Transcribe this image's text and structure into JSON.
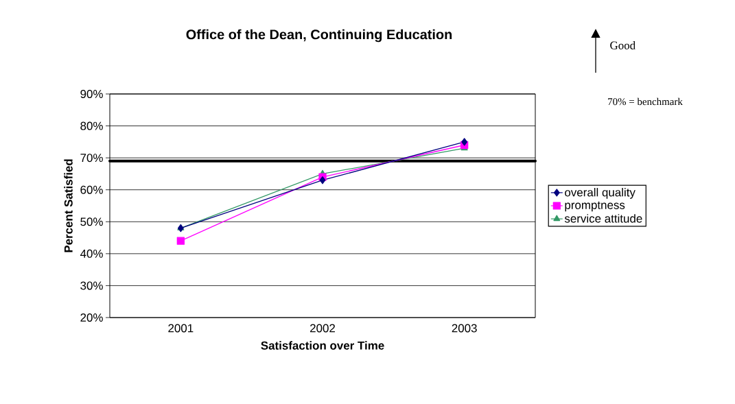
{
  "chart_data": {
    "type": "line",
    "title": "Office of the Dean, Continuing Education",
    "xlabel": "Satisfaction over Time",
    "ylabel": "Percent Satisfied",
    "categories": [
      "2001",
      "2002",
      "2003"
    ],
    "series": [
      {
        "name": "overall quality",
        "color": "#000080",
        "marker": "diamond",
        "values": [
          48,
          63,
          75
        ]
      },
      {
        "name": "promptness",
        "color": "#ff00ff",
        "marker": "square",
        "values": [
          44,
          64,
          74
        ]
      },
      {
        "name": "service attitude",
        "color": "#339966",
        "marker": "triangle",
        "values": [
          48,
          65,
          73
        ]
      }
    ],
    "ylim": [
      20,
      90
    ],
    "yticks": [
      {
        "value": 20,
        "label": "20%"
      },
      {
        "value": 30,
        "label": "30%"
      },
      {
        "value": 40,
        "label": "40%"
      },
      {
        "value": 50,
        "label": "50%"
      },
      {
        "value": 60,
        "label": "60%"
      },
      {
        "value": 70,
        "label": "70%"
      },
      {
        "value": 80,
        "label": "80%"
      },
      {
        "value": 90,
        "label": "90%"
      }
    ],
    "grid": "y",
    "legend": "right",
    "line_style": "solid",
    "ref_lines": [
      {
        "axis": "y",
        "value": 69,
        "color": "#000000"
      }
    ],
    "annotations": [
      "Good",
      "70% = benchmark"
    ]
  }
}
